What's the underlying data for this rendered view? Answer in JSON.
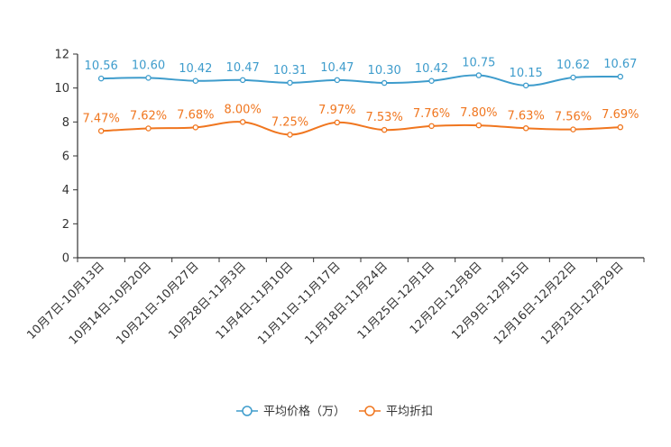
{
  "chart_data": {
    "type": "line",
    "categories": [
      "10月7日-10月13日",
      "10月14日-10月20日",
      "10月21日-10月27日",
      "10月28日-11月3日",
      "11月4日-11月10日",
      "11月11日-11月17日",
      "11月18日-11月24日",
      "11月25日-12月1日",
      "12月2日-12月8日",
      "12月9日-12月15日",
      "12月16日-12月22日",
      "12月23日-12月29日"
    ],
    "series": [
      {
        "name": "平均价格（万）",
        "color": "#3e9ccc",
        "values": [
          10.56,
          10.6,
          10.42,
          10.47,
          10.31,
          10.47,
          10.3,
          10.42,
          10.75,
          10.15,
          10.62,
          10.67
        ],
        "labels": [
          "10.56",
          "10.60",
          "10.42",
          "10.47",
          "10.31",
          "10.47",
          "10.30",
          "10.42",
          "10.75",
          "10.15",
          "10.62",
          "10.67"
        ]
      },
      {
        "name": "平均折扣",
        "color": "#f0761f",
        "values": [
          7.47,
          7.62,
          7.68,
          8.0,
          7.25,
          7.97,
          7.53,
          7.76,
          7.8,
          7.63,
          7.56,
          7.69
        ],
        "labels": [
          "7.47%",
          "7.62%",
          "7.68%",
          "8.00%",
          "7.25%",
          "7.97%",
          "7.53%",
          "7.76%",
          "7.80%",
          "7.63%",
          "7.56%",
          "7.69%"
        ]
      }
    ],
    "yticks": [
      "0",
      "2",
      "4",
      "6",
      "8",
      "10",
      "12"
    ],
    "ylim": [
      0,
      12
    ],
    "grid": false,
    "smooth": true,
    "legend_position": "bottom-center"
  }
}
